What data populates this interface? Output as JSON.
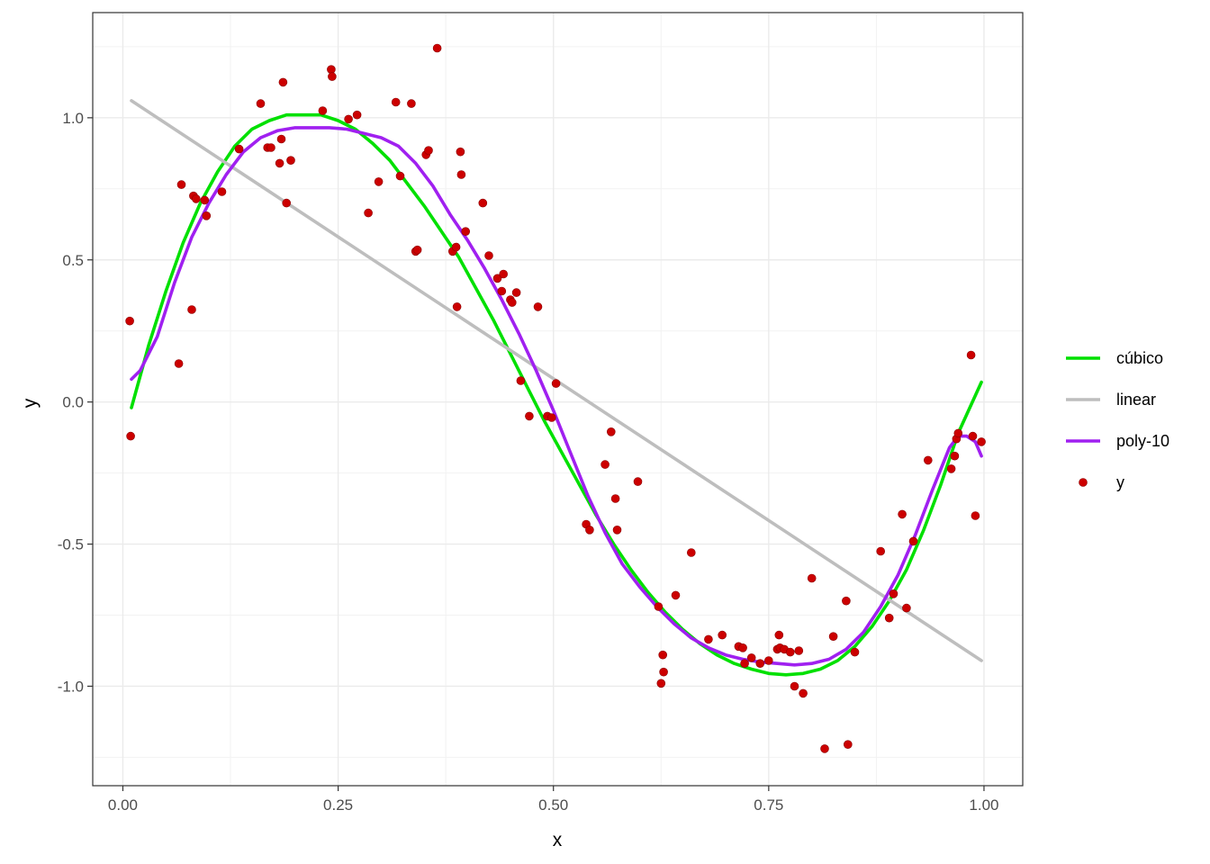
{
  "chart_data": {
    "type": "scatter",
    "xlabel": "x",
    "ylabel": "y",
    "xlim": [
      -0.035,
      1.045
    ],
    "ylim": [
      -1.35,
      1.37
    ],
    "grid": true,
    "legend_position": "right",
    "x_ticks": [
      {
        "value": 0.0,
        "label": "0.00"
      },
      {
        "value": 0.25,
        "label": "0.25"
      },
      {
        "value": 0.5,
        "label": "0.50"
      },
      {
        "value": 0.75,
        "label": "0.75"
      },
      {
        "value": 1.0,
        "label": "1.00"
      }
    ],
    "y_ticks": [
      {
        "value": -1.0,
        "label": "-1.0"
      },
      {
        "value": -0.5,
        "label": "-0.5"
      },
      {
        "value": 0.0,
        "label": "0.0"
      },
      {
        "value": 0.5,
        "label": "0.5"
      },
      {
        "value": 1.0,
        "label": "1.0"
      }
    ],
    "series": [
      {
        "name": "cúbico",
        "kind": "line",
        "color": "#00e000",
        "x": [
          0.01,
          0.03,
          0.05,
          0.07,
          0.09,
          0.11,
          0.13,
          0.15,
          0.17,
          0.19,
          0.21,
          0.23,
          0.25,
          0.27,
          0.29,
          0.31,
          0.33,
          0.35,
          0.37,
          0.39,
          0.41,
          0.43,
          0.45,
          0.47,
          0.49,
          0.51,
          0.53,
          0.55,
          0.57,
          0.59,
          0.61,
          0.63,
          0.65,
          0.67,
          0.69,
          0.71,
          0.73,
          0.75,
          0.77,
          0.79,
          0.81,
          0.83,
          0.85,
          0.87,
          0.89,
          0.91,
          0.93,
          0.95,
          0.97,
          0.997
        ],
        "y": [
          -0.02,
          0.2,
          0.39,
          0.56,
          0.7,
          0.81,
          0.9,
          0.96,
          0.99,
          1.01,
          1.01,
          1.01,
          0.99,
          0.96,
          0.91,
          0.85,
          0.77,
          0.69,
          0.6,
          0.51,
          0.4,
          0.29,
          0.17,
          0.05,
          -0.07,
          -0.18,
          -0.29,
          -0.4,
          -0.5,
          -0.59,
          -0.67,
          -0.74,
          -0.8,
          -0.85,
          -0.89,
          -0.92,
          -0.94,
          -0.955,
          -0.96,
          -0.955,
          -0.94,
          -0.91,
          -0.86,
          -0.79,
          -0.7,
          -0.59,
          -0.45,
          -0.29,
          -0.11,
          0.07
        ]
      },
      {
        "name": "linear",
        "kind": "line",
        "color": "#bebebe",
        "x": [
          0.01,
          0.997
        ],
        "y": [
          1.06,
          -0.91
        ]
      },
      {
        "name": "poly-10",
        "kind": "line",
        "color": "#a020f0",
        "x": [
          0.01,
          0.02,
          0.04,
          0.06,
          0.08,
          0.1,
          0.12,
          0.14,
          0.16,
          0.18,
          0.2,
          0.22,
          0.24,
          0.26,
          0.28,
          0.3,
          0.32,
          0.34,
          0.36,
          0.38,
          0.4,
          0.42,
          0.44,
          0.46,
          0.48,
          0.5,
          0.52,
          0.54,
          0.56,
          0.58,
          0.6,
          0.62,
          0.64,
          0.66,
          0.68,
          0.7,
          0.72,
          0.74,
          0.76,
          0.78,
          0.8,
          0.82,
          0.84,
          0.86,
          0.88,
          0.9,
          0.92,
          0.94,
          0.96,
          0.97,
          0.98,
          0.99,
          0.997
        ],
        "y": [
          0.08,
          0.11,
          0.23,
          0.42,
          0.58,
          0.7,
          0.8,
          0.88,
          0.93,
          0.955,
          0.965,
          0.965,
          0.965,
          0.96,
          0.945,
          0.93,
          0.9,
          0.84,
          0.76,
          0.66,
          0.57,
          0.47,
          0.36,
          0.24,
          0.11,
          -0.03,
          -0.18,
          -0.33,
          -0.46,
          -0.57,
          -0.65,
          -0.72,
          -0.78,
          -0.83,
          -0.865,
          -0.89,
          -0.905,
          -0.915,
          -0.92,
          -0.925,
          -0.92,
          -0.905,
          -0.87,
          -0.81,
          -0.72,
          -0.61,
          -0.47,
          -0.31,
          -0.16,
          -0.12,
          -0.12,
          -0.14,
          -0.19
        ]
      },
      {
        "name": "y",
        "kind": "points",
        "color": "#cc0000",
        "x": [
          0.008,
          0.009,
          0.065,
          0.068,
          0.08,
          0.082,
          0.085,
          0.095,
          0.097,
          0.115,
          0.135,
          0.16,
          0.168,
          0.172,
          0.182,
          0.184,
          0.186,
          0.19,
          0.195,
          0.232,
          0.242,
          0.243,
          0.262,
          0.272,
          0.285,
          0.297,
          0.317,
          0.322,
          0.335,
          0.34,
          0.342,
          0.352,
          0.355,
          0.365,
          0.383,
          0.387,
          0.388,
          0.392,
          0.393,
          0.398,
          0.418,
          0.425,
          0.435,
          0.44,
          0.442,
          0.45,
          0.452,
          0.457,
          0.462,
          0.472,
          0.482,
          0.493,
          0.498,
          0.503,
          0.538,
          0.542,
          0.56,
          0.567,
          0.572,
          0.574,
          0.598,
          0.622,
          0.625,
          0.627,
          0.628,
          0.642,
          0.66,
          0.68,
          0.696,
          0.715,
          0.72,
          0.722,
          0.73,
          0.74,
          0.75,
          0.76,
          0.762,
          0.763,
          0.768,
          0.775,
          0.78,
          0.785,
          0.79,
          0.8,
          0.815,
          0.825,
          0.84,
          0.842,
          0.85,
          0.88,
          0.89,
          0.895,
          0.905,
          0.91,
          0.918,
          0.935,
          0.962,
          0.966,
          0.968,
          0.97,
          0.985,
          0.987,
          0.99,
          0.997
        ],
        "y": [
          0.285,
          -0.12,
          0.135,
          0.765,
          0.325,
          0.725,
          0.715,
          0.71,
          0.655,
          0.74,
          0.89,
          1.05,
          0.895,
          0.895,
          0.84,
          0.925,
          1.125,
          0.7,
          0.85,
          1.025,
          1.17,
          1.145,
          0.995,
          1.01,
          0.665,
          0.775,
          1.055,
          0.795,
          1.05,
          0.53,
          0.535,
          0.87,
          0.885,
          1.245,
          0.53,
          0.545,
          0.335,
          0.88,
          0.8,
          0.6,
          0.7,
          0.515,
          0.435,
          0.39,
          0.45,
          0.36,
          0.35,
          0.385,
          0.075,
          -0.05,
          0.335,
          -0.05,
          -0.055,
          0.065,
          -0.43,
          -0.45,
          -0.22,
          -0.105,
          -0.34,
          -0.45,
          -0.28,
          -0.72,
          -0.99,
          -0.89,
          -0.95,
          -0.68,
          -0.53,
          -0.835,
          -0.82,
          -0.86,
          -0.865,
          -0.92,
          -0.9,
          -0.92,
          -0.91,
          -0.87,
          -0.82,
          -0.865,
          -0.87,
          -0.88,
          -1.0,
          -0.875,
          -1.025,
          -0.62,
          -1.22,
          -0.825,
          -0.7,
          -1.205,
          -0.88,
          -0.525,
          -0.76,
          -0.675,
          -0.395,
          -0.725,
          -0.49,
          -0.205,
          -0.235,
          -0.19,
          -0.13,
          -0.11,
          0.165,
          -0.12,
          -0.4,
          -0.14
        ]
      }
    ]
  }
}
